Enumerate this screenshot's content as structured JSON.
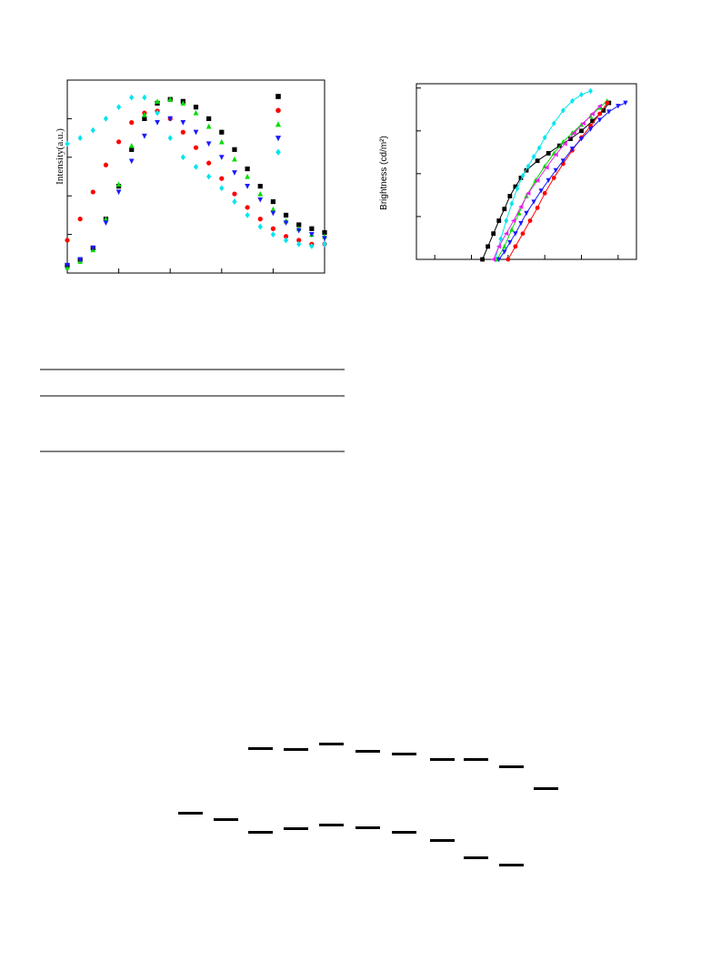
{
  "chart_data": [
    {
      "type": "scatter",
      "y_label": "Intensity(a.u.)",
      "x": [
        0,
        0.25,
        0.5,
        0.75,
        1,
        1.25,
        1.5,
        1.75,
        2,
        2.25,
        2.5,
        2.75,
        3,
        3.25,
        3.5,
        3.75,
        4,
        4.25,
        4.5,
        4.75,
        5
      ],
      "xlim": [
        0,
        5
      ],
      "ylim": [
        0,
        1
      ],
      "xticks": [
        1,
        2,
        3,
        4
      ],
      "yticks": [
        0.2,
        0.4,
        0.6,
        0.8
      ],
      "series": [
        {
          "color": "#000000",
          "marker": "square",
          "values": [
            0.04,
            0.07,
            0.13,
            0.28,
            0.45,
            0.64,
            0.8,
            0.88,
            0.9,
            0.89,
            0.86,
            0.8,
            0.73,
            0.64,
            0.54,
            0.45,
            0.37,
            0.3,
            0.25,
            0.23,
            0.21
          ]
        },
        {
          "color": "#ff0000",
          "marker": "circle",
          "values": [
            0.17,
            0.28,
            0.42,
            0.56,
            0.68,
            0.78,
            0.83,
            0.84,
            0.8,
            0.73,
            0.65,
            0.57,
            0.49,
            0.41,
            0.34,
            0.28,
            0.23,
            0.19,
            0.17,
            0.15,
            0.15
          ]
        },
        {
          "color": "#00dd00",
          "marker": "triangle-up",
          "values": [
            0.03,
            0.06,
            0.12,
            0.28,
            0.46,
            0.66,
            0.82,
            0.89,
            0.9,
            0.88,
            0.83,
            0.76,
            0.68,
            0.59,
            0.5,
            0.41,
            0.33,
            0.27,
            0.23,
            0.2,
            0.19
          ]
        },
        {
          "color": "#1a1aff",
          "marker": "triangle-down",
          "values": [
            0.04,
            0.07,
            0.13,
            0.26,
            0.42,
            0.58,
            0.71,
            0.78,
            0.8,
            0.78,
            0.73,
            0.67,
            0.6,
            0.52,
            0.45,
            0.38,
            0.31,
            0.26,
            0.22,
            0.2,
            0.18
          ]
        },
        {
          "color": "#00e5ee",
          "marker": "diamond",
          "values": [
            0.67,
            0.7,
            0.74,
            0.8,
            0.86,
            0.91,
            0.91,
            0.83,
            0.7,
            0.6,
            0.55,
            0.5,
            0.44,
            0.37,
            0.3,
            0.24,
            0.2,
            0.17,
            0.15,
            0.14,
            0.15
          ]
        }
      ]
    },
    {
      "type": "line",
      "y_label": "Brightness (cd/m²)",
      "log_y": true,
      "xlim": [
        0,
        12
      ],
      "ylim": [
        1,
        12600
      ],
      "xticks": [
        1,
        3,
        5,
        7,
        9,
        11
      ],
      "yticks": [
        10,
        100,
        1000,
        10000
      ],
      "series": [
        {
          "color": "#000000",
          "marker": "square",
          "x": [
            3.6,
            3.9,
            4.2,
            4.5,
            4.8,
            5.1,
            5.4,
            5.7,
            6.0,
            6.6,
            7.2,
            7.8,
            8.4,
            9.0,
            9.6,
            10.2,
            10.5
          ],
          "values": [
            1,
            2,
            4,
            8,
            15,
            30,
            50,
            80,
            120,
            200,
            300,
            450,
            650,
            1000,
            1700,
            3000,
            4500
          ]
        },
        {
          "color": "#00e5ee",
          "marker": "diamond",
          "x": [
            4.3,
            4.6,
            4.9,
            5.2,
            5.5,
            5.8,
            6.1,
            6.4,
            6.7,
            7.0,
            7.5,
            8.0,
            8.5,
            9.0,
            9.5
          ],
          "values": [
            1,
            3,
            8,
            20,
            45,
            90,
            150,
            250,
            400,
            700,
            1500,
            3000,
            5000,
            7000,
            8500
          ]
        },
        {
          "color": "#00dd00",
          "marker": "triangle-up",
          "x": [
            4.4,
            4.8,
            5.2,
            5.6,
            6.0,
            6.5,
            7.0,
            7.5,
            8.0,
            8.5,
            9.0,
            9.5,
            10.0,
            10.4
          ],
          "values": [
            1,
            2,
            5,
            12,
            30,
            70,
            150,
            300,
            550,
            900,
            1400,
            2200,
            3500,
            5000
          ]
        },
        {
          "color": "#ee22ee",
          "marker": "triangle-left",
          "x": [
            4.2,
            4.5,
            4.9,
            5.3,
            5.7,
            6.1,
            6.6,
            7.1,
            7.6,
            8.1,
            8.6,
            9.1,
            9.6,
            10.0
          ],
          "values": [
            1,
            2,
            4,
            8,
            17,
            35,
            70,
            140,
            280,
            500,
            900,
            1500,
            2500,
            3800
          ]
        },
        {
          "color": "#ff0000",
          "marker": "circle",
          "x": [
            5.0,
            5.4,
            5.8,
            6.2,
            6.6,
            7.0,
            7.5,
            8.0,
            8.5,
            9.0,
            9.5,
            10.0,
            10.4
          ],
          "values": [
            1,
            2,
            4,
            8,
            16,
            35,
            80,
            170,
            350,
            700,
            1300,
            2500,
            4500
          ]
        },
        {
          "color": "#1a1aff",
          "marker": "triangle-down",
          "x": [
            4.5,
            4.8,
            5.1,
            5.4,
            5.7,
            6.0,
            6.4,
            6.8,
            7.2,
            7.6,
            8.0,
            8.5,
            9.0,
            9.5,
            10.0,
            10.5,
            11.0,
            11.4
          ],
          "values": [
            1,
            1.5,
            2.5,
            4,
            7,
            12,
            22,
            40,
            70,
            120,
            200,
            380,
            650,
            1100,
            1800,
            2800,
            3800,
            4500
          ]
        }
      ]
    }
  ]
}
